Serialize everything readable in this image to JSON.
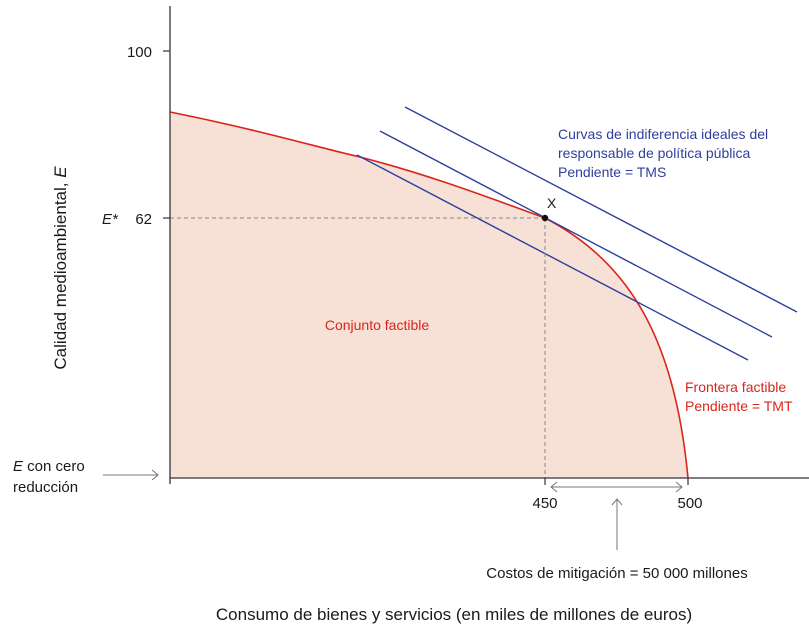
{
  "chart_data": {
    "type": "diagram",
    "title": "",
    "xlabel": "Consumo de bienes y servicios (en miles de millones de euros)",
    "ylabel": "Calidad medioambiental, ",
    "ylabel_var": "E",
    "x_ticks": [
      {
        "value": 450,
        "label": "450"
      },
      {
        "value": 500,
        "label": "500"
      }
    ],
    "y_ticks": [
      {
        "value": 100,
        "label": "100"
      },
      {
        "value": 62,
        "label": "62"
      }
    ],
    "e_star_label": "E*",
    "point": {
      "label": "X",
      "x": 450,
      "y": 62
    },
    "e_zero_label": {
      "var": "E",
      "line1_rest": " con cero",
      "line2": "reducción"
    },
    "feasible_set_label": "Conjunto factible",
    "frontier_label": {
      "line1": "Frontera factible",
      "line2": "Pendiente = TMT"
    },
    "indifference_label": {
      "line1": "Curvas de indiferencia ideales del",
      "line2": "responsable de política pública",
      "line3": "Pendiente = TMS"
    },
    "mitigation_label": "Costos de mitigación = 50 000 millones",
    "colors": {
      "axis": "#333333",
      "frontier": "#d9261c",
      "fill": "#f7e1d6",
      "indifference": "#2e3f9e",
      "text": "#1a1a1a",
      "dashed": "#888888",
      "arrow": "#777777"
    }
  }
}
